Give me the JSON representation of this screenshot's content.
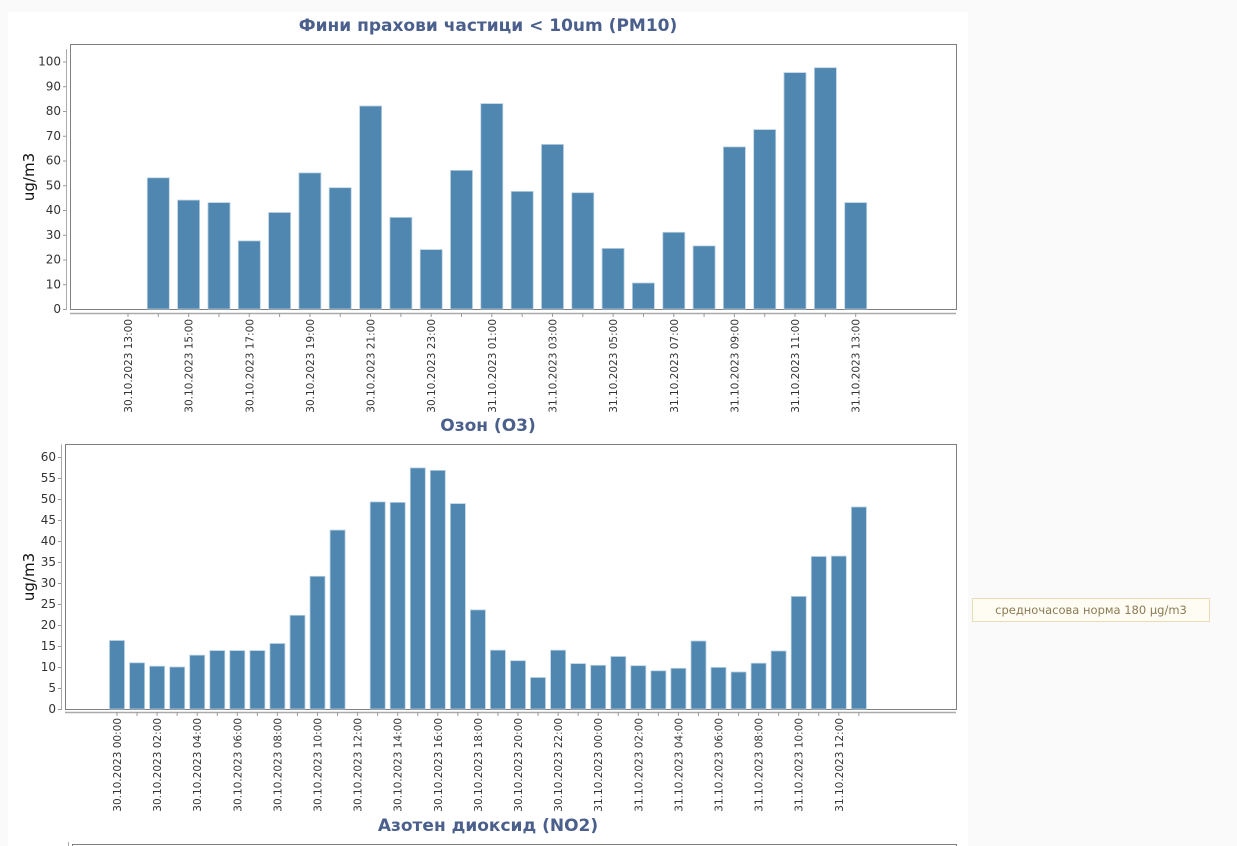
{
  "norm_note": "средночасова норма 180 µg/m3",
  "colors": {
    "bar": "#5087b0",
    "title": "#4a5f8c",
    "frame": "#808080"
  },
  "chart_data": [
    {
      "type": "bar",
      "title": "Фини прахови частици < 10um (PM10)",
      "xlabel": "",
      "ylabel": "ug/m3",
      "ylim": [
        0,
        105
      ],
      "yticks": [
        0,
        10,
        20,
        30,
        40,
        50,
        60,
        70,
        80,
        90,
        100
      ],
      "categories": [
        "30.10.2023 13:00",
        "30.10.2023 14:00",
        "30.10.2023 15:00",
        "30.10.2023 16:00",
        "30.10.2023 17:00",
        "30.10.2023 18:00",
        "30.10.2023 19:00",
        "30.10.2023 20:00",
        "30.10.2023 21:00",
        "30.10.2023 22:00",
        "30.10.2023 23:00",
        "31.10.2023 00:00",
        "31.10.2023 01:00",
        "31.10.2023 02:00",
        "31.10.2023 03:00",
        "31.10.2023 04:00",
        "31.10.2023 05:00",
        "31.10.2023 06:00",
        "31.10.2023 07:00",
        "31.10.2023 08:00",
        "31.10.2023 09:00",
        "31.10.2023 10:00",
        "31.10.2023 11:00",
        "31.10.2023 12:00",
        "31.10.2023 13:00"
      ],
      "tick_labels": [
        "30.10.2023 13:00",
        "30.10.2023 15:00",
        "30.10.2023 17:00",
        "30.10.2023 19:00",
        "30.10.2023 21:00",
        "30.10.2023 23:00",
        "31.10.2023 01:00",
        "31.10.2023 03:00",
        "31.10.2023 05:00",
        "31.10.2023 07:00",
        "31.10.2023 09:00",
        "31.10.2023 11:00",
        "31.10.2023 13:00"
      ],
      "values": [
        null,
        53,
        44,
        43,
        27.5,
        39,
        55,
        49,
        82,
        37,
        24,
        56,
        83,
        47.5,
        66.5,
        47,
        24.5,
        10.5,
        31,
        25.5,
        65.5,
        72.5,
        95.5,
        97.5,
        43
      ],
      "grid": false,
      "legend": "none"
    },
    {
      "type": "bar",
      "title": "Озон (O3)",
      "xlabel": "",
      "ylabel": "ug/m3",
      "ylim": [
        0,
        63
      ],
      "yticks": [
        0,
        5,
        10,
        15,
        20,
        25,
        30,
        35,
        40,
        45,
        50,
        55,
        60
      ],
      "categories": [
        "30.10.2023 00:00",
        "30.10.2023 01:00",
        "30.10.2023 02:00",
        "30.10.2023 03:00",
        "30.10.2023 04:00",
        "30.10.2023 05:00",
        "30.10.2023 06:00",
        "30.10.2023 07:00",
        "30.10.2023 08:00",
        "30.10.2023 09:00",
        "30.10.2023 10:00",
        "30.10.2023 11:00",
        "30.10.2023 12:00",
        "30.10.2023 13:00",
        "30.10.2023 14:00",
        "30.10.2023 15:00",
        "30.10.2023 16:00",
        "30.10.2023 17:00",
        "30.10.2023 18:00",
        "30.10.2023 19:00",
        "30.10.2023 20:00",
        "30.10.2023 21:00",
        "30.10.2023 22:00",
        "30.10.2023 23:00",
        "31.10.2023 00:00",
        "31.10.2023 01:00",
        "31.10.2023 02:00",
        "31.10.2023 03:00",
        "31.10.2023 04:00",
        "31.10.2023 05:00",
        "31.10.2023 06:00",
        "31.10.2023 07:00",
        "31.10.2023 08:00",
        "31.10.2023 09:00",
        "31.10.2023 10:00",
        "31.10.2023 11:00",
        "31.10.2023 12:00",
        "31.10.2023 13:00"
      ],
      "tick_labels": [
        "30.10.2023 00:00",
        "30.10.2023 02:00",
        "30.10.2023 04:00",
        "30.10.2023 06:00",
        "30.10.2023 08:00",
        "30.10.2023 10:00",
        "30.10.2023 12:00",
        "30.10.2023 14:00",
        "30.10.2023 16:00",
        "30.10.2023 18:00",
        "30.10.2023 20:00",
        "30.10.2023 22:00",
        "31.10.2023 00:00",
        "31.10.2023 02:00",
        "31.10.2023 04:00",
        "31.10.2023 06:00",
        "31.10.2023 08:00",
        "31.10.2023 10:00",
        "31.10.2023 12:00"
      ],
      "values": [
        16.3,
        11.0,
        10.2,
        10.0,
        12.8,
        13.9,
        13.9,
        13.9,
        15.6,
        22.3,
        31.6,
        42.6,
        null,
        49.3,
        49.2,
        57.4,
        56.8,
        48.9,
        23.6,
        14.0,
        11.5,
        7.5,
        14.0,
        10.8,
        10.4,
        12.5,
        10.3,
        9.1,
        9.7,
        16.2,
        9.9,
        8.8,
        10.9,
        13.8,
        26.8,
        36.3,
        36.4,
        48.1
      ],
      "grid": false,
      "legend": "none"
    },
    {
      "type": "bar",
      "title": "Азотен диоксид (NO2)",
      "ylabel": "",
      "values": []
    }
  ]
}
